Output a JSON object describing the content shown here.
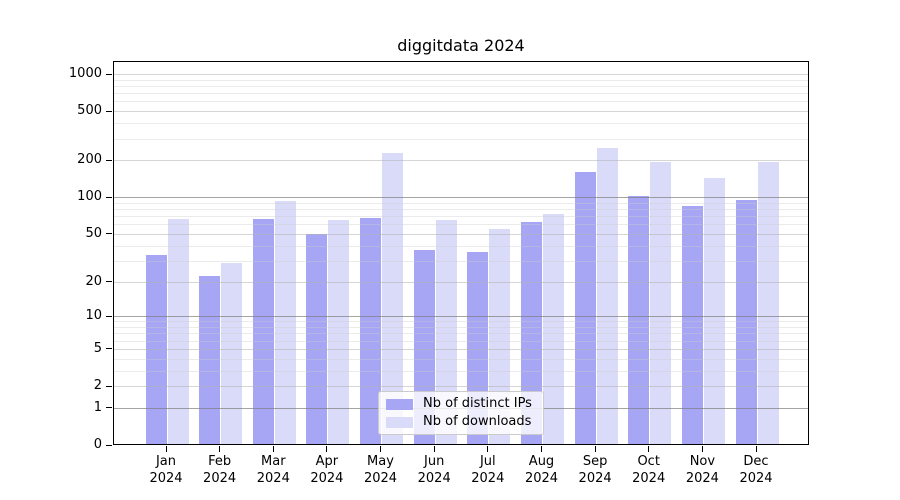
{
  "chart_data": {
    "type": "bar",
    "title": "diggitdata 2024",
    "categories": [
      "Jan",
      "Feb",
      "Mar",
      "Apr",
      "May",
      "Jun",
      "Jul",
      "Aug",
      "Sep",
      "Oct",
      "Nov",
      "Dec"
    ],
    "category_year": "2024",
    "series": [
      {
        "name": "Nb of distinct IPs",
        "color": "#a6a6f4",
        "values": [
          33,
          22,
          65,
          49,
          66,
          36,
          35,
          61,
          158,
          100,
          83,
          94
        ]
      },
      {
        "name": "Nb of downloads",
        "color": "#dadaf9",
        "values": [
          65,
          28,
          92,
          64,
          225,
          64,
          54,
          71,
          248,
          190,
          140,
          189
        ]
      }
    ],
    "y_axis": {
      "scale": "log1p",
      "ticks": [
        0,
        1,
        2,
        5,
        10,
        20,
        50,
        100,
        200,
        500,
        1000
      ],
      "major_grid_ticks": [
        1,
        10,
        100
      ],
      "minor_gridlines": [
        3,
        4,
        6,
        7,
        8,
        9,
        30,
        40,
        60,
        70,
        80,
        90,
        300,
        400,
        600,
        700,
        800,
        900
      ],
      "top_value": 1275
    },
    "legend_position": "lower center inside",
    "grid": "both"
  },
  "colors": {
    "bar_distinct_ips": "#a6a6f4",
    "bar_downloads": "#dadaf9",
    "spine": "#000000"
  }
}
